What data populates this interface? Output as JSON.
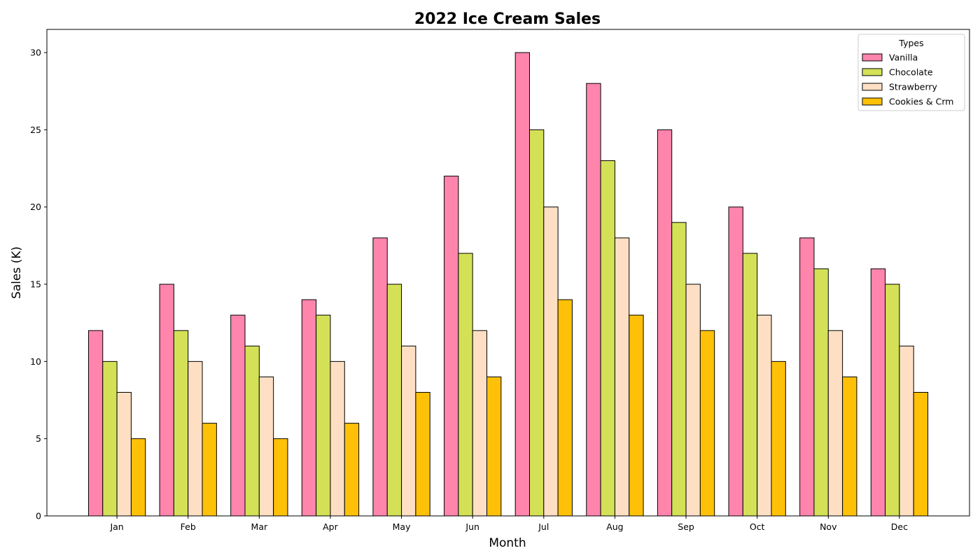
{
  "chart_data": {
    "type": "bar",
    "title": "2022 Ice Cream Sales",
    "xlabel": "Month",
    "ylabel": "Sales (K)",
    "categories": [
      "Jan",
      "Feb",
      "Mar",
      "Apr",
      "May",
      "Jun",
      "Jul",
      "Aug",
      "Sep",
      "Oct",
      "Nov",
      "Dec"
    ],
    "series": [
      {
        "name": "Vanilla",
        "color": "#FF85AD",
        "values": [
          12,
          15,
          13,
          14,
          18,
          22,
          30,
          28,
          25,
          20,
          18,
          16
        ]
      },
      {
        "name": "Chocolate",
        "color": "#D4E157",
        "values": [
          10,
          12,
          11,
          13,
          15,
          17,
          25,
          23,
          19,
          17,
          16,
          15
        ]
      },
      {
        "name": "Strawberry",
        "color": "#FFDFC4",
        "values": [
          8,
          10,
          9,
          10,
          11,
          12,
          20,
          18,
          15,
          13,
          12,
          11
        ]
      },
      {
        "name": "Cookies & Crm",
        "color": "#FFC107",
        "values": [
          5,
          6,
          5,
          6,
          8,
          9,
          14,
          13,
          12,
          10,
          9,
          8
        ]
      }
    ],
    "ylim": [
      0,
      31.5
    ],
    "yticks": [
      0,
      5,
      10,
      15,
      20,
      25,
      30
    ],
    "grid": false,
    "legend": {
      "title": "Types",
      "position": "top-right"
    },
    "bar_edge_color": "#000000"
  }
}
